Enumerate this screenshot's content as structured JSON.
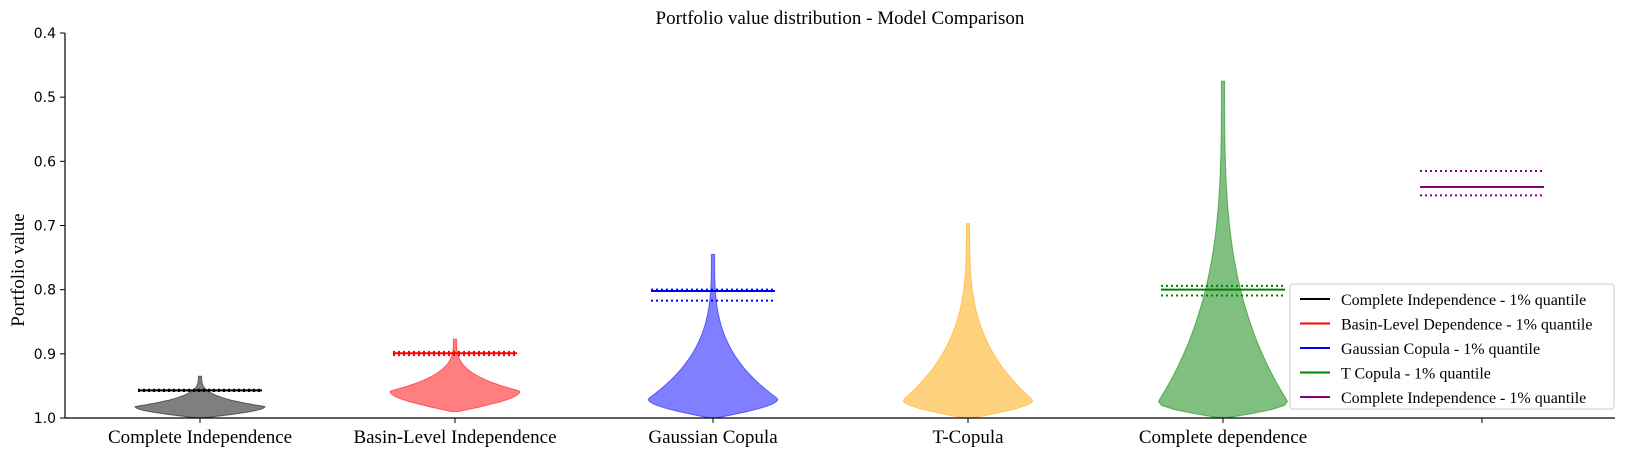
{
  "chart_data": {
    "type": "violin",
    "title": "Portfolio value distribution - Model Comparison",
    "xlabel": "",
    "ylabel": "Portfolio value",
    "ylim": [
      1.0,
      0.4
    ],
    "y_axis_inverted": true,
    "yticks": [
      "0.4",
      "0.5",
      "0.6",
      "0.7",
      "0.8",
      "0.9",
      "1.0"
    ],
    "ytick_values": [
      0.4,
      0.5,
      0.6,
      0.7,
      0.8,
      0.9,
      1.0
    ],
    "categories": [
      "Complete Independence",
      "Basin-Level Independence",
      "Gaussian Copula",
      "T-Copula",
      "Complete dependence",
      ""
    ],
    "grid": false,
    "legend_position": "bottom-right",
    "violins": [
      {
        "category": "Complete Independence",
        "color": "#000000",
        "min": 0.935,
        "max": 1.0,
        "peak": 0.982,
        "max_half_width": 0.26
      },
      {
        "category": "Basin-Level Independence",
        "color": "#ff0000",
        "min": 0.877,
        "max": 0.99,
        "peak": 0.958,
        "max_half_width": 0.26
      },
      {
        "category": "Gaussian Copula",
        "color": "#0000ff",
        "min": 0.745,
        "max": 1.0,
        "peak": 0.97,
        "max_half_width": 0.26
      },
      {
        "category": "T-Copula",
        "color": "#ffa500",
        "min": 0.697,
        "max": 1.0,
        "peak": 0.972,
        "max_half_width": 0.26
      },
      {
        "category": "Complete dependence",
        "color": "#008000",
        "min": 0.475,
        "max": 1.0,
        "peak": 0.975,
        "max_half_width": 0.26
      }
    ],
    "quantile_lines": [
      {
        "category_index": 0,
        "color": "#000000",
        "solid": 0.957,
        "dotted": [
          0.956,
          0.958
        ]
      },
      {
        "category_index": 1,
        "color": "#ff0000",
        "solid": 0.899,
        "dotted": [
          0.897,
          0.902
        ]
      },
      {
        "category_index": 2,
        "color": "#0000ff",
        "solid": 0.802,
        "dotted": [
          0.8,
          0.817
        ]
      },
      {
        "category_index": 4,
        "color": "#008000",
        "solid": 0.8,
        "dotted": [
          0.794,
          0.809
        ]
      },
      {
        "category_index": 5,
        "color": "#800080",
        "solid": 0.64,
        "dotted": [
          0.615,
          0.653
        ]
      }
    ],
    "legend": [
      {
        "label": "Complete Independence - 1% quantile",
        "color": "#000000"
      },
      {
        "label": "Basin-Level Dependence - 1% quantile",
        "color": "#ff0000"
      },
      {
        "label": "Gaussian Copula - 1% quantile",
        "color": "#0000ff"
      },
      {
        "label": "T Copula - 1% quantile",
        "color": "#008000"
      },
      {
        "label": "Complete Independence - 1% quantile",
        "color": "#800080"
      }
    ]
  }
}
